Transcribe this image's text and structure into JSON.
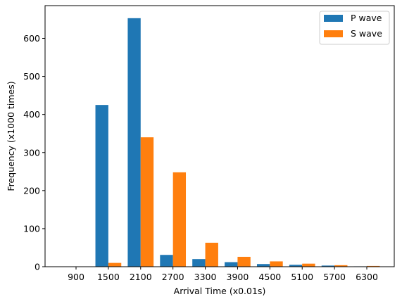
{
  "chart_data": {
    "type": "bar",
    "title": "",
    "xlabel": "Arrival Time (x0.01s)",
    "ylabel": "Frequency (x1000 times)",
    "categories": [
      "900",
      "1500",
      "2100",
      "2700",
      "3300",
      "3900",
      "4500",
      "5100",
      "5700",
      "6300"
    ],
    "series": [
      {
        "name": "P wave",
        "color": "#1f77b4",
        "values": [
          0,
          425,
          653,
          31,
          20,
          12,
          7,
          5,
          3,
          1
        ]
      },
      {
        "name": "S wave",
        "color": "#ff7f0e",
        "values": [
          0,
          10,
          340,
          248,
          63,
          26,
          14,
          8,
          4,
          2
        ]
      }
    ],
    "ylim": [
      0,
      686
    ],
    "yticks": [
      0,
      100,
      200,
      300,
      400,
      500,
      600
    ],
    "grid": false,
    "legend_position": "top-right"
  }
}
